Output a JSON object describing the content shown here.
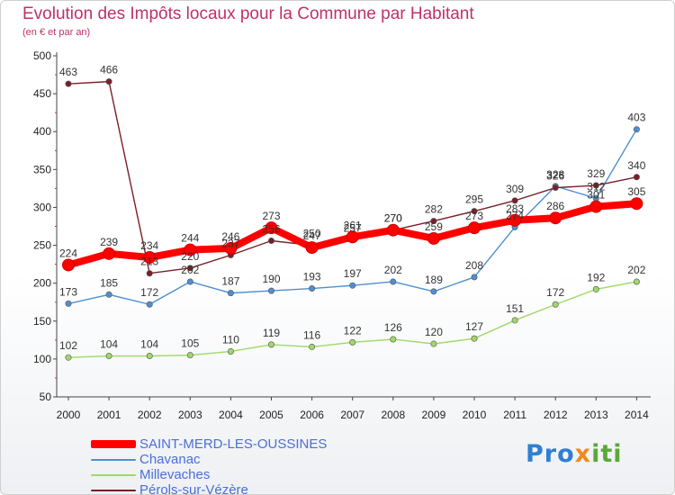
{
  "chart_data": {
    "type": "line",
    "title": "Evolution des Impôts locaux pour la Commune par Habitant",
    "subtitle": "(en € et par an)",
    "x": [
      "2000",
      "2001",
      "2002",
      "2003",
      "2004",
      "2005",
      "2006",
      "2007",
      "2008",
      "2009",
      "2010",
      "2011",
      "2012",
      "2013",
      "2014"
    ],
    "ylim": [
      50,
      500
    ],
    "yticks": [
      50,
      100,
      150,
      200,
      250,
      300,
      350,
      400,
      450,
      500
    ],
    "grid": false,
    "legend_position": "bottom-left",
    "series": [
      {
        "name": "SAINT-MERD-LES-OUSSINES",
        "color": "#ff0000",
        "emphasis": true,
        "values": [
          224,
          239,
          234,
          244,
          246,
          273,
          247,
          261,
          270,
          259,
          273,
          283,
          286,
          301,
          305
        ]
      },
      {
        "name": "Chavanac",
        "color": "#4f8fcf",
        "values": [
          173,
          185,
          172,
          202,
          187,
          190,
          193,
          197,
          202,
          189,
          208,
          274,
          328,
          312,
          403
        ]
      },
      {
        "name": "Millevaches",
        "color": "#9fd86a",
        "values": [
          102,
          104,
          104,
          105,
          110,
          119,
          116,
          122,
          126,
          120,
          127,
          151,
          172,
          192,
          202
        ]
      },
      {
        "name": "Pérols-sur-Vézère",
        "color": "#7a1f2a",
        "values": [
          463,
          466,
          213,
          220,
          237,
          256,
          250,
          257,
          270,
          282,
          295,
          309,
          326,
          329,
          340
        ]
      }
    ]
  },
  "branding": {
    "logo_parts": [
      "Pro",
      "x",
      "iti"
    ],
    "logo_colors": [
      "#2f7fd4",
      "#f08a1c",
      "#5aa83a"
    ]
  }
}
